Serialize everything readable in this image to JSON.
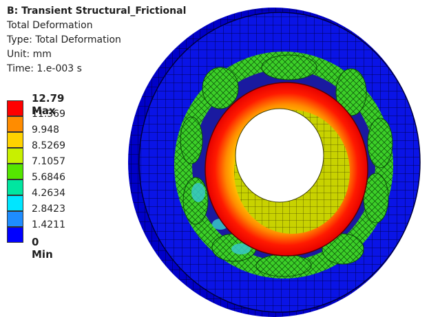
{
  "header": {
    "title": "B: Transient Structural_Frictional",
    "result_name": "Total Deformation",
    "type_line": "Type: Total Deformation",
    "unit_line": "Unit: mm",
    "time_line": "Time: 1.e-003 s"
  },
  "legend": {
    "max_label": "12.79 Max",
    "min_label": "0 Min",
    "labels": [
      "11.369",
      "9.948",
      "8.5269",
      "7.1057",
      "5.6846",
      "4.2634",
      "2.8423",
      "1.4211"
    ],
    "colors": [
      "#ff0000",
      "#ff8c00",
      "#ffd200",
      "#c8f000",
      "#55e600",
      "#00e6a0",
      "#00e6ff",
      "#1e8cff",
      "#0000ff"
    ]
  }
}
